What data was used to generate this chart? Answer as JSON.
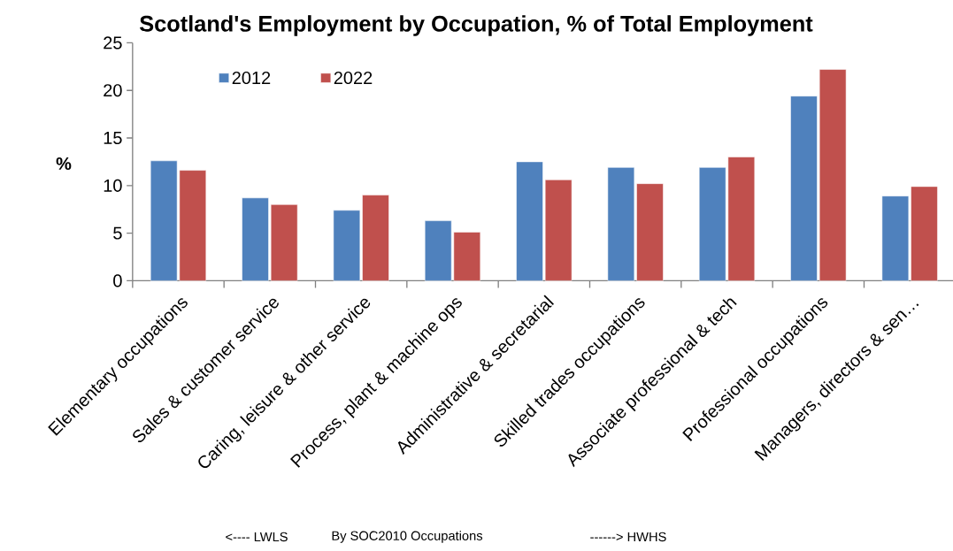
{
  "chart_data": {
    "type": "bar",
    "title": "Scotland's Employment by Occupation, % of Total Employment",
    "ylabel": "%",
    "categories": [
      "Elementary occupations",
      "Sales & customer service",
      "Caring, leisure & other service",
      "Process, plant & machine ops",
      "Administrative & secretarial",
      "Skilled trades occupations",
      "Associate professional & tech",
      "Professional occupations",
      "Managers, directors & sen…"
    ],
    "series": [
      {
        "name": "2012",
        "color": "#4f81bd",
        "values": [
          12.6,
          8.7,
          7.4,
          6.3,
          12.5,
          11.9,
          11.9,
          19.4,
          8.9
        ]
      },
      {
        "name": "2022",
        "color": "#c0504d",
        "values": [
          11.6,
          8.0,
          9.0,
          5.1,
          10.6,
          10.2,
          13.0,
          22.2,
          9.9
        ]
      }
    ],
    "ylim": [
      0,
      25
    ],
    "yticks": [
      0,
      5,
      10,
      15,
      20,
      25
    ],
    "grid": false,
    "legend": "top left",
    "annotations": [
      "<---- LWLS",
      "By SOC2010 Occupations",
      "------> HWHS"
    ]
  }
}
